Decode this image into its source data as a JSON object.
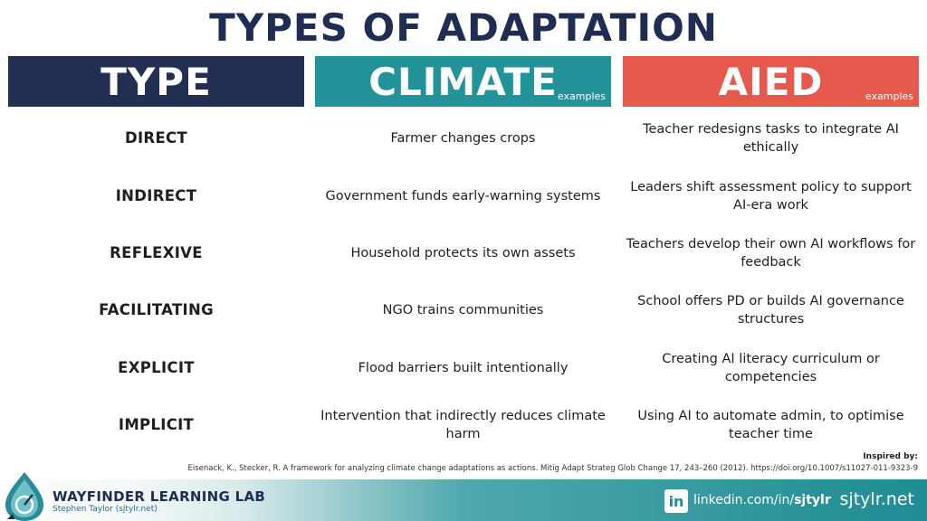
{
  "title": "TYPES OF ADAPTATION",
  "headers": {
    "type": "TYPE",
    "climate": "CLIMATE",
    "climate_sub": "examples",
    "aied": "AIED",
    "aied_sub": "examples"
  },
  "rows": [
    {
      "type": "DIRECT",
      "climate": "Farmer changes crops",
      "aied": "Teacher redesigns tasks to integrate AI ethically"
    },
    {
      "type": "INDIRECT",
      "climate": "Government funds early-warning systems",
      "aied": "Leaders shift assessment policy to support AI-era work"
    },
    {
      "type": "REFLEXIVE",
      "climate": "Household protects its own assets",
      "aied": "Teachers develop their own AI workflows for feedback"
    },
    {
      "type": "FACILITATING",
      "climate": "NGO trains communities",
      "aied": "School offers PD or builds AI governance structures"
    },
    {
      "type": "EXPLICIT",
      "climate": "Flood barriers built intentionally",
      "aied": "Creating AI literacy curriculum or competencies"
    },
    {
      "type": "IMPLICIT",
      "climate": "Intervention that indirectly reduces climate harm",
      "aied": "Using AI to automate admin, to optimise teacher time"
    }
  ],
  "inspired_label": "Inspired by:",
  "citation": "Eisenack, K., Stecker, R. A framework for analyzing climate change adaptations as actions. Mitig Adapt Strateg Glob Change 17, 243–260 (2012). https://doi.org/10.1007/s11027-011-9323-9",
  "footer": {
    "brand": "WAYFINDER LEARNING LAB",
    "brand_sub": "Stephen Taylor (sjtylr.net)",
    "linkedin_icon": "in",
    "linkedin_prefix": "linkedin.com/in/",
    "linkedin_handle": "sjtylr",
    "site": "sjtylr.net"
  },
  "colors": {
    "navy": "#222e52",
    "teal": "#23939a",
    "coral": "#e65a4d"
  }
}
